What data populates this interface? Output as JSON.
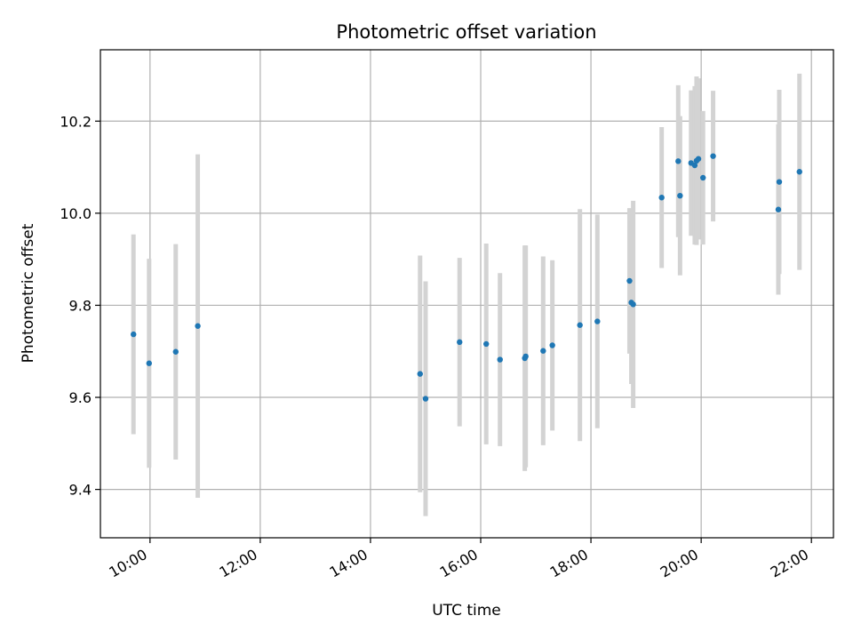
{
  "chart_data": {
    "type": "scatter",
    "title": "Photometric offset variation",
    "xlabel": "UTC time",
    "ylabel": "Photometric offset",
    "x_ticks": [
      "10:00",
      "12:00",
      "14:00",
      "16:00",
      "18:00",
      "20:00",
      "22:00"
    ],
    "y_ticks": [
      "9.4",
      "9.6",
      "9.8",
      "10.0",
      "10.2"
    ],
    "xlim": [
      "09:06",
      "22:24"
    ],
    "ylim": [
      9.295,
      10.355
    ],
    "grid": true,
    "colors": {
      "points": "#1f77b4",
      "errorbars": "#d3d3d3",
      "grid": "#b0b0b0"
    },
    "series": [
      {
        "x": [
          "09:42",
          "09:59",
          "10:28",
          "10:52",
          "14:54",
          "15:00",
          "15:37",
          "16:06",
          "16:21",
          "16:48",
          "16:49",
          "17:08",
          "17:18",
          "17:48",
          "18:07",
          "18:42",
          "18:44",
          "18:46",
          "19:17",
          "19:35",
          "19:37",
          "19:49",
          "19:53",
          "19:55",
          "19:57",
          "20:02",
          "20:13",
          "21:24",
          "21:25",
          "21:47"
        ],
        "y": [
          9.737,
          9.674,
          9.699,
          9.755,
          9.651,
          9.597,
          9.72,
          9.716,
          9.682,
          9.685,
          9.689,
          9.701,
          9.713,
          9.757,
          9.765,
          9.853,
          9.806,
          9.802,
          10.034,
          10.113,
          10.038,
          10.109,
          10.104,
          10.114,
          10.118,
          10.077,
          10.124,
          10.008,
          10.068,
          10.09
        ],
        "y_err": [
          0.217,
          0.227,
          0.234,
          0.373,
          0.257,
          0.255,
          0.183,
          0.218,
          0.188,
          0.245,
          0.241,
          0.205,
          0.185,
          0.252,
          0.232,
          0.158,
          0.177,
          0.225,
          0.153,
          0.165,
          0.173,
          0.158,
          0.172,
          0.183,
          0.175,
          0.145,
          0.142,
          0.185,
          0.2,
          0.213
        ]
      }
    ]
  }
}
